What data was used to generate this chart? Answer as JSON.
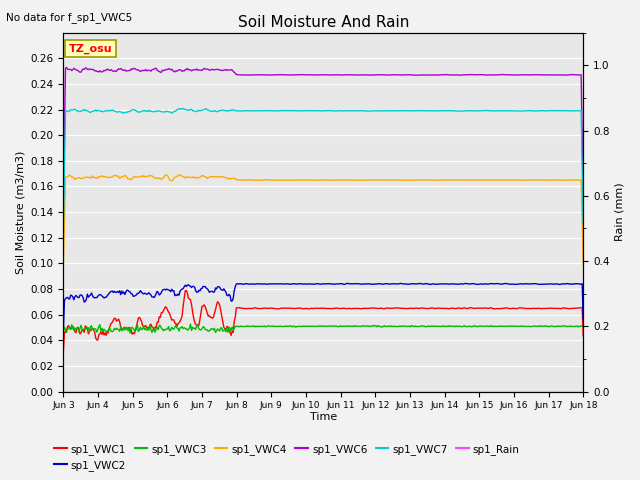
{
  "title": "Soil Moisture And Rain",
  "no_data_text": "No data for f_sp1_VWC5",
  "tz_label": "TZ_osu",
  "xlabel": "Time",
  "ylabel_left": "Soil Moisture (m3/m3)",
  "ylabel_right": "Rain (mm)",
  "ylim_left": [
    0.0,
    0.28
  ],
  "ylim_right": [
    0.0,
    1.1
  ],
  "plot_bg_color": "#e8e8e8",
  "fig_bg_color": "#f2f2f2",
  "series": {
    "sp1_VWC1": {
      "color": "#ff0000",
      "base_value": 0.065,
      "early_base": 0.047
    },
    "sp1_VWC2": {
      "color": "#0000cc",
      "base_value": 0.084,
      "early_base": 0.074
    },
    "sp1_VWC3": {
      "color": "#00bb00",
      "base_value": 0.051,
      "early_base": 0.049
    },
    "sp1_VWC4": {
      "color": "#ffaa00",
      "base_value": 0.165,
      "early_base": 0.167
    },
    "sp1_VWC6": {
      "color": "#aa00cc",
      "base_value": 0.247,
      "early_base": 0.251
    },
    "sp1_VWC7": {
      "color": "#00cccc",
      "base_value": 0.219,
      "early_base": 0.219
    },
    "sp1_Rain": {
      "color": "#ff44ff",
      "base_value": 0.0,
      "early_base": 0.0
    }
  },
  "xtick_labels": [
    "Jun 3",
    "Jun 4",
    "Jun 5",
    "Jun 6",
    "Jun 7",
    "Jun 8",
    "Jun 9",
    "Jun 10",
    "Jun 11",
    "Jun 12",
    "Jun 13",
    "Jun 14",
    "Jun 15",
    "Jun 16",
    "Jun 17",
    "Jun 18"
  ],
  "yticks_left": [
    0.0,
    0.02,
    0.04,
    0.06,
    0.08,
    0.1,
    0.12,
    0.14,
    0.16,
    0.18,
    0.2,
    0.22,
    0.24,
    0.26
  ],
  "yticks_right": [
    0.0,
    0.2,
    0.4,
    0.6,
    0.8,
    1.0
  ],
  "grid_color": "#ffffff",
  "linewidth": 1.0,
  "n_points": 500,
  "transition": 165
}
